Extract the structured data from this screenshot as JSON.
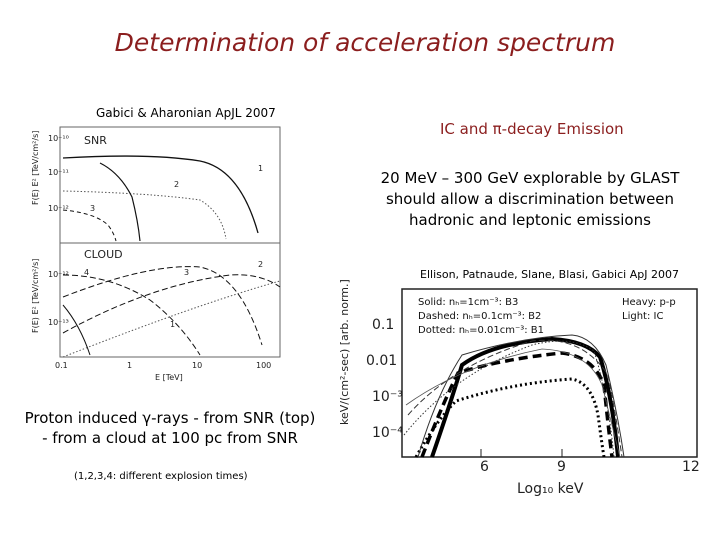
{
  "slide": {
    "title": "Determination of acceleration spectrum",
    "citation_left": "Gabici & Aharonian ApJL 2007",
    "ic_title": "IC and π-decay Emission",
    "glast_text": "20 MeV – 300 GeV explorable by GLAST should allow a discrimination between hadronic and leptonic emissions",
    "citation_right": "Ellison, Patnaude, Slane, Blasi, Gabici ApJ 2007",
    "proton_text": "Proton induced γ-rays - from SNR (top) - from a cloud at 100 pc from SNR",
    "explosion_note": "(1,2,3,4: different explosion times)"
  },
  "left_figure": {
    "snr_label": "SNR",
    "cloud_label": "CLOUD",
    "top_ylabel": "F(E) E² [TeV/cm²/s]",
    "bottom_ylabel": "F(E) E² [TeV/cm²/s]",
    "xlabel": "E [TeV]",
    "x_ticks": [
      "0.1",
      "1",
      "10",
      "100"
    ],
    "top_y_ticks": [
      "10⁻¹⁰",
      "10⁻¹¹",
      "10⁻¹²"
    ],
    "bottom_y_ticks": [
      "10⁻¹²",
      "10⁻¹³"
    ],
    "top_curve_labels": [
      "1",
      "2",
      "3"
    ],
    "bottom_curve_labels": [
      "4",
      "3",
      "2",
      "1"
    ]
  },
  "right_figure": {
    "ylabel": "keV/(cm²-sec) [arb. norm.]",
    "xlabel": "Log₁₀ keV",
    "x_ticks": [
      "6",
      "9",
      "12"
    ],
    "y_ticks": [
      "0.1",
      "0.01",
      "10⁻³",
      "10⁻⁴"
    ],
    "legend_left": [
      "Solid: nₕ=1cm⁻³: B3",
      "Dashed: nₕ=0.1cm⁻³: B2",
      "Dotted: nₕ=0.01cm⁻³: B1"
    ],
    "legend_right": [
      "Heavy: p-p",
      "Light: IC"
    ]
  }
}
